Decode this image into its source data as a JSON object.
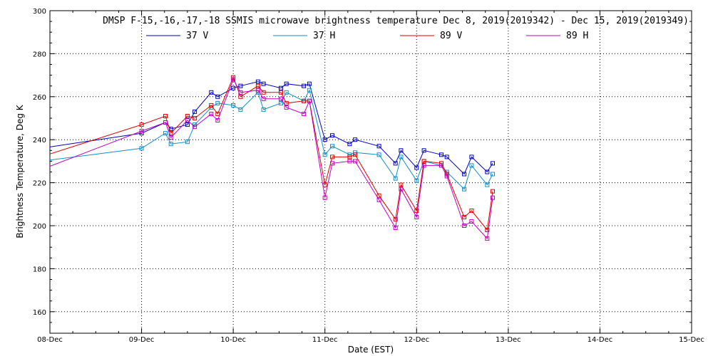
{
  "chart_data": {
    "type": "line",
    "title": "DMSP F-15,-16,-17,-18 SSMIS microwave brightness temperature Dec  8, 2019(2019342) - Dec 15, 2019(2019349)",
    "xlabel": "Date (EST)",
    "ylabel": "Brightness Temperature, Deg K",
    "xlim": [
      0,
      7
    ],
    "ylim": [
      150,
      300
    ],
    "x_ticks": [
      0,
      1,
      2,
      3,
      4,
      5,
      6,
      7
    ],
    "x_tick_labels": [
      "08-Dec",
      "09-Dec",
      "10-Dec",
      "11-Dec",
      "12-Dec",
      "13-Dec",
      "14-Dec",
      "15-Dec"
    ],
    "y_ticks": [
      160,
      180,
      200,
      220,
      240,
      260,
      280,
      300
    ],
    "y_tick_labels": [
      "160",
      "180",
      "200",
      "220",
      "240",
      "260",
      "280",
      "300"
    ],
    "x_unit_note": "x values in days after 08-Dec 00:00 EST",
    "grid": true,
    "legend_position": "top-center",
    "series": [
      {
        "name": "37 V",
        "color": "#0000c0",
        "x": [
          -0.1,
          1.0,
          1.26,
          1.32,
          1.5,
          1.58,
          1.76,
          1.83,
          2.0,
          2.08,
          2.27,
          2.33,
          2.52,
          2.58,
          2.77,
          2.83,
          3.0,
          3.08,
          3.27,
          3.33,
          3.59,
          3.77,
          3.83,
          4.0,
          4.08,
          4.27,
          4.33,
          4.52,
          4.6,
          4.77,
          4.83
        ],
        "y": [
          236,
          243,
          248,
          245,
          247,
          253,
          262,
          260,
          264,
          265,
          267,
          266,
          264,
          266,
          265,
          266,
          240,
          242,
          238,
          240,
          237,
          229,
          235,
          227,
          235,
          233,
          232,
          224,
          232,
          225,
          229
        ]
      },
      {
        "name": "37 H",
        "color": "#1090c8",
        "x": [
          -0.1,
          1.0,
          1.26,
          1.32,
          1.5,
          1.58,
          1.76,
          1.83,
          2.0,
          2.08,
          2.27,
          2.33,
          2.52,
          2.58,
          2.77,
          2.83,
          3.0,
          3.08,
          3.27,
          3.33,
          3.59,
          3.77,
          3.83,
          4.0,
          4.08,
          4.27,
          4.33,
          4.52,
          4.6,
          4.77,
          4.83
        ],
        "y": [
          230,
          236,
          243,
          238,
          239,
          247,
          255,
          257,
          256,
          254,
          262,
          254,
          257,
          262,
          258,
          263,
          233,
          237,
          233,
          234,
          233,
          222,
          232,
          221,
          230,
          228,
          225,
          217,
          228,
          219,
          224
        ]
      },
      {
        "name": "89 V",
        "color": "#e00000",
        "x": [
          -0.1,
          1.0,
          1.26,
          1.32,
          1.5,
          1.58,
          1.76,
          1.83,
          2.0,
          2.08,
          2.27,
          2.33,
          2.52,
          2.58,
          2.77,
          2.83,
          3.0,
          3.08,
          3.27,
          3.33,
          3.59,
          3.77,
          3.83,
          4.0,
          4.08,
          4.27,
          4.33,
          4.52,
          4.6,
          4.77,
          4.83
        ],
        "y": [
          232,
          247,
          251,
          243,
          251,
          250,
          256,
          252,
          269,
          260,
          265,
          262,
          262,
          257,
          258,
          258,
          219,
          232,
          232,
          233,
          214,
          203,
          219,
          207,
          230,
          229,
          224,
          204,
          207,
          198,
          216
        ]
      },
      {
        "name": "89 H",
        "color": "#c000c0",
        "x": [
          -0.1,
          1.0,
          1.26,
          1.32,
          1.5,
          1.58,
          1.76,
          1.83,
          2.0,
          2.08,
          2.27,
          2.33,
          2.52,
          2.58,
          2.77,
          2.83,
          3.0,
          3.08,
          3.27,
          3.33,
          3.59,
          3.77,
          3.83,
          4.0,
          4.08,
          4.27,
          4.33,
          4.52,
          4.6,
          4.77,
          4.83
        ],
        "y": [
          226,
          244,
          248,
          241,
          249,
          246,
          252,
          249,
          268,
          262,
          263,
          259,
          259,
          255,
          252,
          258,
          213,
          229,
          230,
          230,
          212,
          199,
          217,
          204,
          228,
          228,
          223,
          200,
          202,
          194,
          213
        ]
      }
    ]
  }
}
